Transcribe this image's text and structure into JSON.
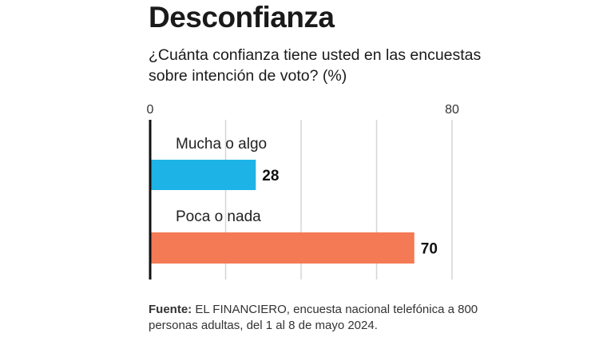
{
  "header": {
    "title": "Desconfianza",
    "subtitle": "¿Cuánta confianza tiene usted en las encuestas sobre intención de voto? (%)"
  },
  "source": {
    "label": "Fuente:",
    "text": "EL FINANCIERO, encuesta nacional telefónica a 800 personas adultas, del 1 al 8 de mayo 2024."
  },
  "colors": {
    "mucha_o_algo": "#1eb3e6",
    "poca_o_nada": "#f47a55",
    "axis": "#111111",
    "grid": "#d6d6d6"
  },
  "chart_data": {
    "type": "bar",
    "orientation": "horizontal",
    "title": "Desconfianza",
    "subtitle": "¿Cuánta confianza tiene usted en las encuestas sobre intención de voto? (%)",
    "categories": [
      "Mucha o algo",
      "Poca o nada"
    ],
    "values": [
      28,
      70
    ],
    "xlim": [
      0,
      80
    ],
    "ticks": [
      0,
      80
    ],
    "grid": true
  }
}
